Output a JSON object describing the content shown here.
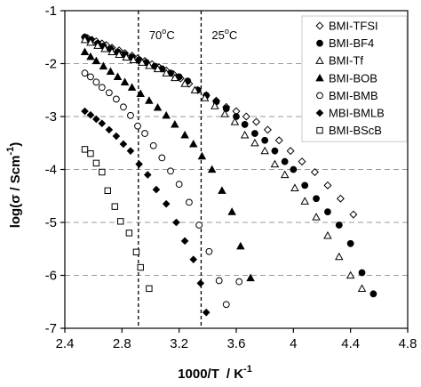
{
  "chart_data": {
    "type": "scatter",
    "xlabel_main": "1000/T",
    "xlabel_unit": "/ K",
    "xlabel_unit_sup": "-1",
    "ylabel_main": "log(σ",
    "ylabel_unit": "/ Scm",
    "ylabel_unit_sup": "-1",
    "ylabel_close": ")",
    "xlim": [
      2.4,
      4.8
    ],
    "ylim": [
      -7,
      -1
    ],
    "xticks": [
      2.4,
      2.8,
      3.2,
      3.6,
      4,
      4.4,
      4.8
    ],
    "xtick_labels": [
      "2.4",
      "2.8",
      "3.2",
      "3.6",
      "4",
      "4.4",
      "4.8"
    ],
    "yticks": [
      -7,
      -6,
      -5,
      -4,
      -3,
      -2,
      -1
    ],
    "ytick_labels": [
      "-7",
      "-6",
      "-5",
      "-4",
      "-3",
      "-2",
      "-1"
    ],
    "grid": "horizontal dashed",
    "legend_placement": "top-right",
    "annotations": [
      {
        "id": "70c",
        "x": 2.915,
        "text": "70",
        "sup": "o",
        "suffix": "C"
      },
      {
        "id": "25c",
        "x": 3.354,
        "text": "25",
        "sup": "o",
        "suffix": "C"
      }
    ],
    "series": [
      {
        "name": "BMI-TFSI",
        "marker": "diamond-open",
        "points": [
          [
            2.54,
            -1.5
          ],
          [
            2.56,
            -1.52
          ],
          [
            2.59,
            -1.55
          ],
          [
            2.62,
            -1.58
          ],
          [
            2.66,
            -1.62
          ],
          [
            2.69,
            -1.65
          ],
          [
            2.73,
            -1.7
          ],
          [
            2.78,
            -1.75
          ],
          [
            2.82,
            -1.8
          ],
          [
            2.87,
            -1.85
          ],
          [
            2.91,
            -1.9
          ],
          [
            2.96,
            -1.95
          ],
          [
            3.01,
            -2.01
          ],
          [
            3.06,
            -2.07
          ],
          [
            3.11,
            -2.13
          ],
          [
            3.16,
            -2.2
          ],
          [
            3.21,
            -2.28
          ],
          [
            3.27,
            -2.38
          ],
          [
            3.33,
            -2.5
          ],
          [
            3.39,
            -2.6
          ],
          [
            3.46,
            -2.7
          ],
          [
            3.53,
            -2.82
          ],
          [
            3.6,
            -2.9
          ],
          [
            3.67,
            -3.0
          ],
          [
            3.74,
            -3.1
          ],
          [
            3.82,
            -3.25
          ],
          [
            3.9,
            -3.45
          ],
          [
            3.98,
            -3.65
          ],
          [
            4.06,
            -3.85
          ],
          [
            4.15,
            -4.05
          ],
          [
            4.24,
            -4.3
          ],
          [
            4.33,
            -4.55
          ],
          [
            4.42,
            -4.85
          ]
        ]
      },
      {
        "name": "BMI-BF4",
        "marker": "circle-filled",
        "points": [
          [
            2.54,
            -1.5
          ],
          [
            2.58,
            -1.55
          ],
          [
            2.63,
            -1.62
          ],
          [
            2.67,
            -1.67
          ],
          [
            2.72,
            -1.72
          ],
          [
            2.77,
            -1.78
          ],
          [
            2.82,
            -1.83
          ],
          [
            2.87,
            -1.88
          ],
          [
            2.92,
            -1.93
          ],
          [
            2.97,
            -1.98
          ],
          [
            3.03,
            -2.05
          ],
          [
            3.08,
            -2.1
          ],
          [
            3.14,
            -2.18
          ],
          [
            3.2,
            -2.25
          ],
          [
            3.26,
            -2.33
          ],
          [
            3.33,
            -2.5
          ],
          [
            3.39,
            -2.6
          ],
          [
            3.46,
            -2.72
          ],
          [
            3.53,
            -2.85
          ],
          [
            3.6,
            -3.0
          ],
          [
            3.66,
            -3.15
          ],
          [
            3.73,
            -3.32
          ],
          [
            3.8,
            -3.45
          ],
          [
            3.87,
            -3.65
          ],
          [
            3.94,
            -3.85
          ],
          [
            4.0,
            -4.0
          ],
          [
            4.08,
            -4.3
          ],
          [
            4.16,
            -4.55
          ],
          [
            4.24,
            -4.8
          ],
          [
            4.32,
            -5.05
          ],
          [
            4.4,
            -5.4
          ],
          [
            4.48,
            -5.95
          ],
          [
            4.56,
            -6.35
          ]
        ]
      },
      {
        "name": "BMI-Tf",
        "marker": "triangle-open",
        "points": [
          [
            2.54,
            -1.55
          ],
          [
            2.58,
            -1.6
          ],
          [
            2.63,
            -1.66
          ],
          [
            2.68,
            -1.72
          ],
          [
            2.73,
            -1.78
          ],
          [
            2.78,
            -1.83
          ],
          [
            2.83,
            -1.88
          ],
          [
            2.88,
            -1.93
          ],
          [
            2.94,
            -1.98
          ],
          [
            2.99,
            -2.04
          ],
          [
            3.05,
            -2.1
          ],
          [
            3.11,
            -2.18
          ],
          [
            3.17,
            -2.27
          ],
          [
            3.24,
            -2.38
          ],
          [
            3.31,
            -2.5
          ],
          [
            3.38,
            -2.65
          ],
          [
            3.45,
            -2.8
          ],
          [
            3.52,
            -2.95
          ],
          [
            3.59,
            -3.1
          ],
          [
            3.66,
            -3.35
          ],
          [
            3.73,
            -3.5
          ],
          [
            3.8,
            -3.65
          ],
          [
            3.87,
            -3.9
          ],
          [
            3.94,
            -4.1
          ],
          [
            4.01,
            -4.35
          ],
          [
            4.08,
            -4.6
          ],
          [
            4.16,
            -4.9
          ],
          [
            4.24,
            -5.25
          ],
          [
            4.32,
            -5.65
          ],
          [
            4.4,
            -6.0
          ],
          [
            4.48,
            -6.25
          ]
        ]
      },
      {
        "name": "BMI-BOB",
        "marker": "triangle-filled",
        "points": [
          [
            2.54,
            -1.78
          ],
          [
            2.58,
            -1.87
          ],
          [
            2.62,
            -1.95
          ],
          [
            2.67,
            -2.05
          ],
          [
            2.72,
            -2.15
          ],
          [
            2.77,
            -2.25
          ],
          [
            2.82,
            -2.35
          ],
          [
            2.87,
            -2.45
          ],
          [
            2.93,
            -2.57
          ],
          [
            2.99,
            -2.7
          ],
          [
            3.05,
            -2.83
          ],
          [
            3.11,
            -2.98
          ],
          [
            3.17,
            -3.15
          ],
          [
            3.24,
            -3.35
          ],
          [
            3.3,
            -3.52
          ],
          [
            3.36,
            -3.75
          ],
          [
            3.43,
            -4.0
          ],
          [
            3.5,
            -4.4
          ],
          [
            3.57,
            -4.8
          ],
          [
            3.63,
            -5.45
          ],
          [
            3.7,
            -6.05
          ]
        ]
      },
      {
        "name": "BMI-BMB",
        "marker": "circle-open",
        "points": [
          [
            2.54,
            -2.18
          ],
          [
            2.58,
            -2.25
          ],
          [
            2.62,
            -2.35
          ],
          [
            2.66,
            -2.45
          ],
          [
            2.71,
            -2.55
          ],
          [
            2.76,
            -2.67
          ],
          [
            2.81,
            -2.82
          ],
          [
            2.86,
            -2.98
          ],
          [
            2.91,
            -3.18
          ],
          [
            2.96,
            -3.32
          ],
          [
            3.02,
            -3.55
          ],
          [
            3.08,
            -3.78
          ],
          [
            3.14,
            -4.03
          ],
          [
            3.2,
            -4.28
          ],
          [
            3.27,
            -4.62
          ],
          [
            3.34,
            -5.05
          ],
          [
            3.41,
            -5.55
          ],
          [
            3.48,
            -6.1
          ],
          [
            3.53,
            -6.55
          ],
          [
            3.62,
            -6.12
          ]
        ]
      },
      {
        "name": "MBI-BMLB",
        "marker": "diamond-filled",
        "points": [
          [
            2.54,
            -2.9
          ],
          [
            2.58,
            -2.97
          ],
          [
            2.62,
            -3.05
          ],
          [
            2.66,
            -3.13
          ],
          [
            2.71,
            -3.25
          ],
          [
            2.76,
            -3.37
          ],
          [
            2.81,
            -3.52
          ],
          [
            2.86,
            -3.65
          ],
          [
            2.92,
            -3.9
          ],
          [
            2.98,
            -4.1
          ],
          [
            3.04,
            -4.38
          ],
          [
            3.11,
            -4.65
          ],
          [
            3.18,
            -5.0
          ],
          [
            3.24,
            -5.35
          ],
          [
            3.3,
            -5.7
          ],
          [
            3.35,
            -6.15
          ],
          [
            3.39,
            -6.7
          ]
        ]
      },
      {
        "name": "BMI-BScB",
        "marker": "square-open",
        "points": [
          [
            2.54,
            -3.62
          ],
          [
            2.58,
            -3.7
          ],
          [
            2.62,
            -3.88
          ],
          [
            2.66,
            -4.05
          ],
          [
            2.7,
            -4.4
          ],
          [
            2.75,
            -4.7
          ],
          [
            2.79,
            -4.98
          ],
          [
            2.85,
            -5.2
          ],
          [
            2.9,
            -5.56
          ],
          [
            2.93,
            -5.85
          ],
          [
            2.99,
            -6.25
          ]
        ]
      }
    ]
  }
}
